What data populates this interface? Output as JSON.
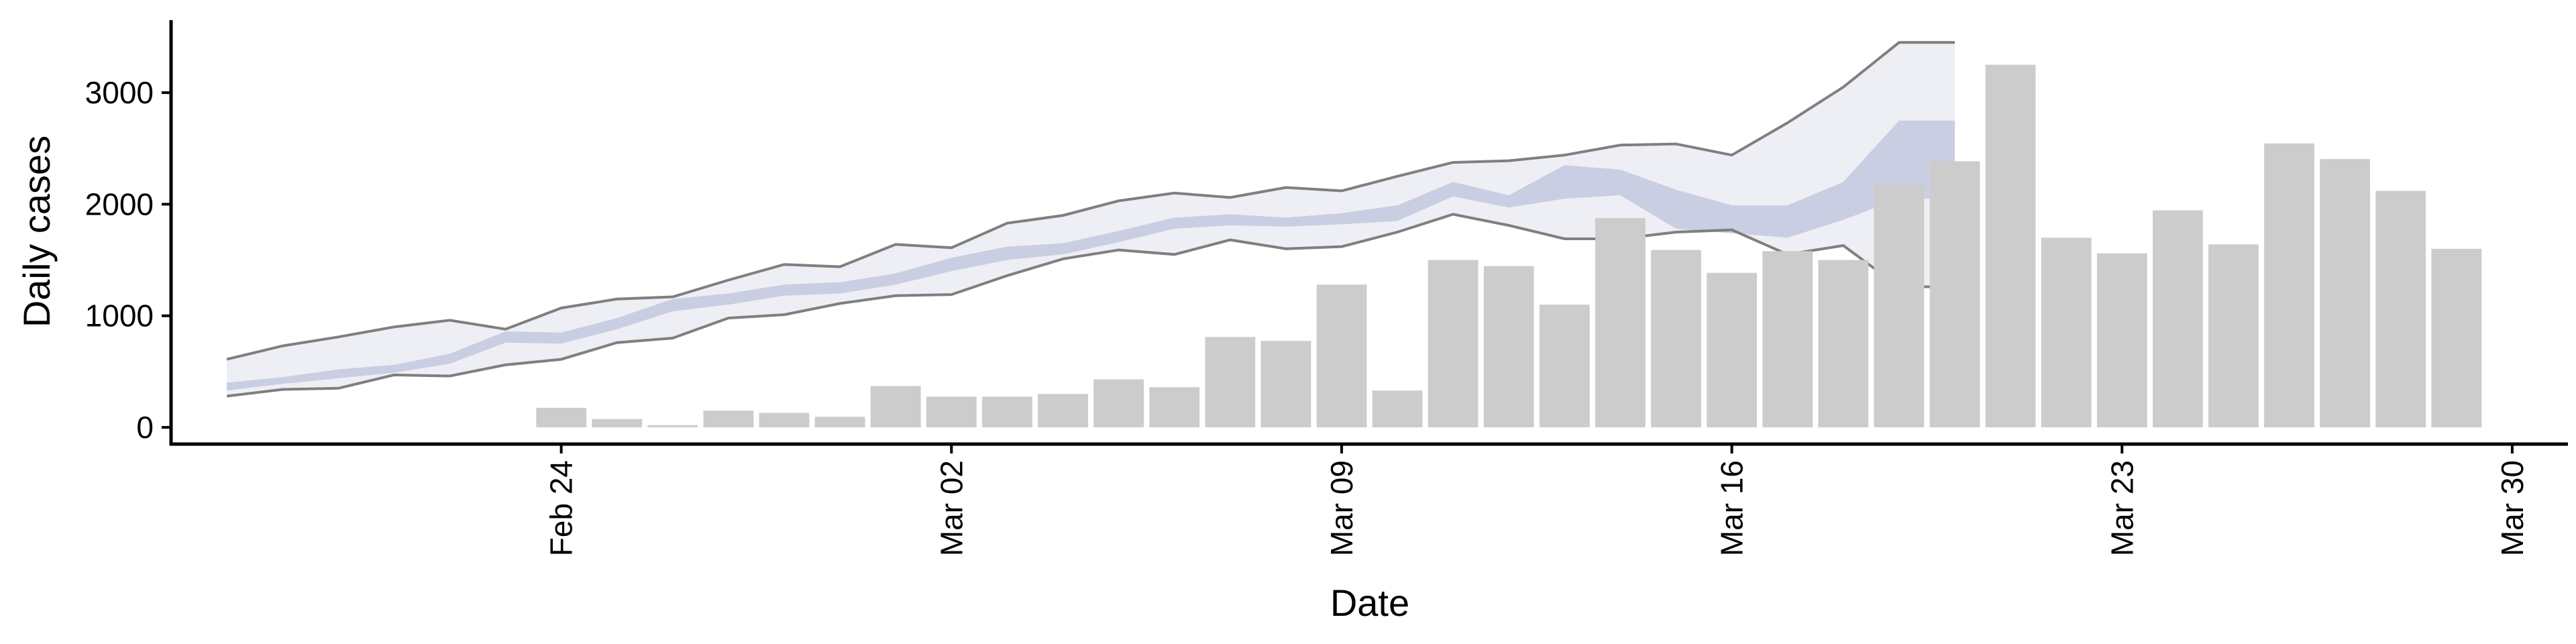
{
  "chart_data": {
    "type": "bar",
    "xlabel": "Date",
    "ylabel": "Daily cases",
    "x_ticks": [
      {
        "date": "2020-02-24",
        "label": "Feb 24"
      },
      {
        "date": "2020-03-02",
        "label": "Mar 02"
      },
      {
        "date": "2020-03-09",
        "label": "Mar 09"
      },
      {
        "date": "2020-03-16",
        "label": "Mar 16"
      },
      {
        "date": "2020-03-23",
        "label": "Mar 23"
      },
      {
        "date": "2020-03-30",
        "label": "Mar 30"
      }
    ],
    "y_ticks": [
      0,
      1000,
      2000,
      3000
    ],
    "xlim": [
      "2020-02-17",
      "2020-03-31"
    ],
    "ylim": [
      -150,
      3650
    ],
    "grid": false,
    "colors": {
      "bars": "#cccccc",
      "outer_band": "#ebebf3",
      "inner_band": "#c7cbe0",
      "bound_lines": "#7f7f7f"
    },
    "bars": {
      "dates": [
        "2020-02-24",
        "2020-02-25",
        "2020-02-26",
        "2020-02-27",
        "2020-02-28",
        "2020-02-29",
        "2020-03-01",
        "2020-03-02",
        "2020-03-03",
        "2020-03-04",
        "2020-03-05",
        "2020-03-06",
        "2020-03-07",
        "2020-03-08",
        "2020-03-09",
        "2020-03-10",
        "2020-03-11",
        "2020-03-12",
        "2020-03-13",
        "2020-03-14",
        "2020-03-15",
        "2020-03-16",
        "2020-03-17",
        "2020-03-18",
        "2020-03-19",
        "2020-03-20",
        "2020-03-21",
        "2020-03-22",
        "2020-03-23",
        "2020-03-24",
        "2020-03-25",
        "2020-03-26",
        "2020-03-27",
        "2020-03-28",
        "2020-03-29"
      ],
      "values": [
        175,
        75,
        20,
        150,
        130,
        95,
        370,
        275,
        275,
        300,
        430,
        360,
        810,
        775,
        1280,
        330,
        1500,
        1445,
        1100,
        1875,
        1590,
        1385,
        1580,
        1500,
        2175,
        2385,
        3250,
        1700,
        1560,
        1945,
        1640,
        2545,
        2405,
        2120,
        1600
      ]
    },
    "band": {
      "dates": [
        "2020-02-18",
        "2020-02-19",
        "2020-02-20",
        "2020-02-21",
        "2020-02-22",
        "2020-02-23",
        "2020-02-24",
        "2020-02-25",
        "2020-02-26",
        "2020-02-27",
        "2020-02-28",
        "2020-02-29",
        "2020-03-01",
        "2020-03-02",
        "2020-03-03",
        "2020-03-04",
        "2020-03-05",
        "2020-03-06",
        "2020-03-07",
        "2020-03-08",
        "2020-03-09",
        "2020-03-10",
        "2020-03-11",
        "2020-03-12",
        "2020-03-13",
        "2020-03-14",
        "2020-03-15",
        "2020-03-16",
        "2020-03-17",
        "2020-03-18",
        "2020-03-19",
        "2020-03-20"
      ],
      "upper": [
        610,
        730,
        810,
        900,
        960,
        880,
        1070,
        1150,
        1170,
        1320,
        1460,
        1440,
        1640,
        1610,
        1830,
        1900,
        2030,
        2100,
        2060,
        2150,
        2120,
        2250,
        2375,
        2390,
        2440,
        2530,
        2540,
        2440,
        2730,
        3050,
        3450,
        3450
      ],
      "lower": [
        280,
        340,
        350,
        470,
        460,
        560,
        610,
        760,
        800,
        980,
        1010,
        1110,
        1180,
        1190,
        1360,
        1510,
        1590,
        1550,
        1680,
        1600,
        1620,
        1750,
        1910,
        1810,
        1690,
        1690,
        1750,
        1770,
        1550,
        1630,
        1260,
        1260
      ],
      "inner_upper": [
        400,
        450,
        520,
        560,
        660,
        860,
        850,
        980,
        1150,
        1200,
        1280,
        1300,
        1380,
        1520,
        1620,
        1650,
        1760,
        1880,
        1910,
        1880,
        1920,
        1990,
        2200,
        2080,
        2350,
        2310,
        2130,
        1990,
        1990,
        2200,
        2750,
        2750
      ],
      "inner_lower": [
        330,
        390,
        440,
        490,
        570,
        760,
        750,
        880,
        1040,
        1100,
        1180,
        1200,
        1280,
        1400,
        1500,
        1550,
        1660,
        1780,
        1810,
        1800,
        1820,
        1850,
        2070,
        1970,
        2050,
        2080,
        1780,
        1740,
        1700,
        1860,
        2050,
        2050
      ]
    }
  }
}
